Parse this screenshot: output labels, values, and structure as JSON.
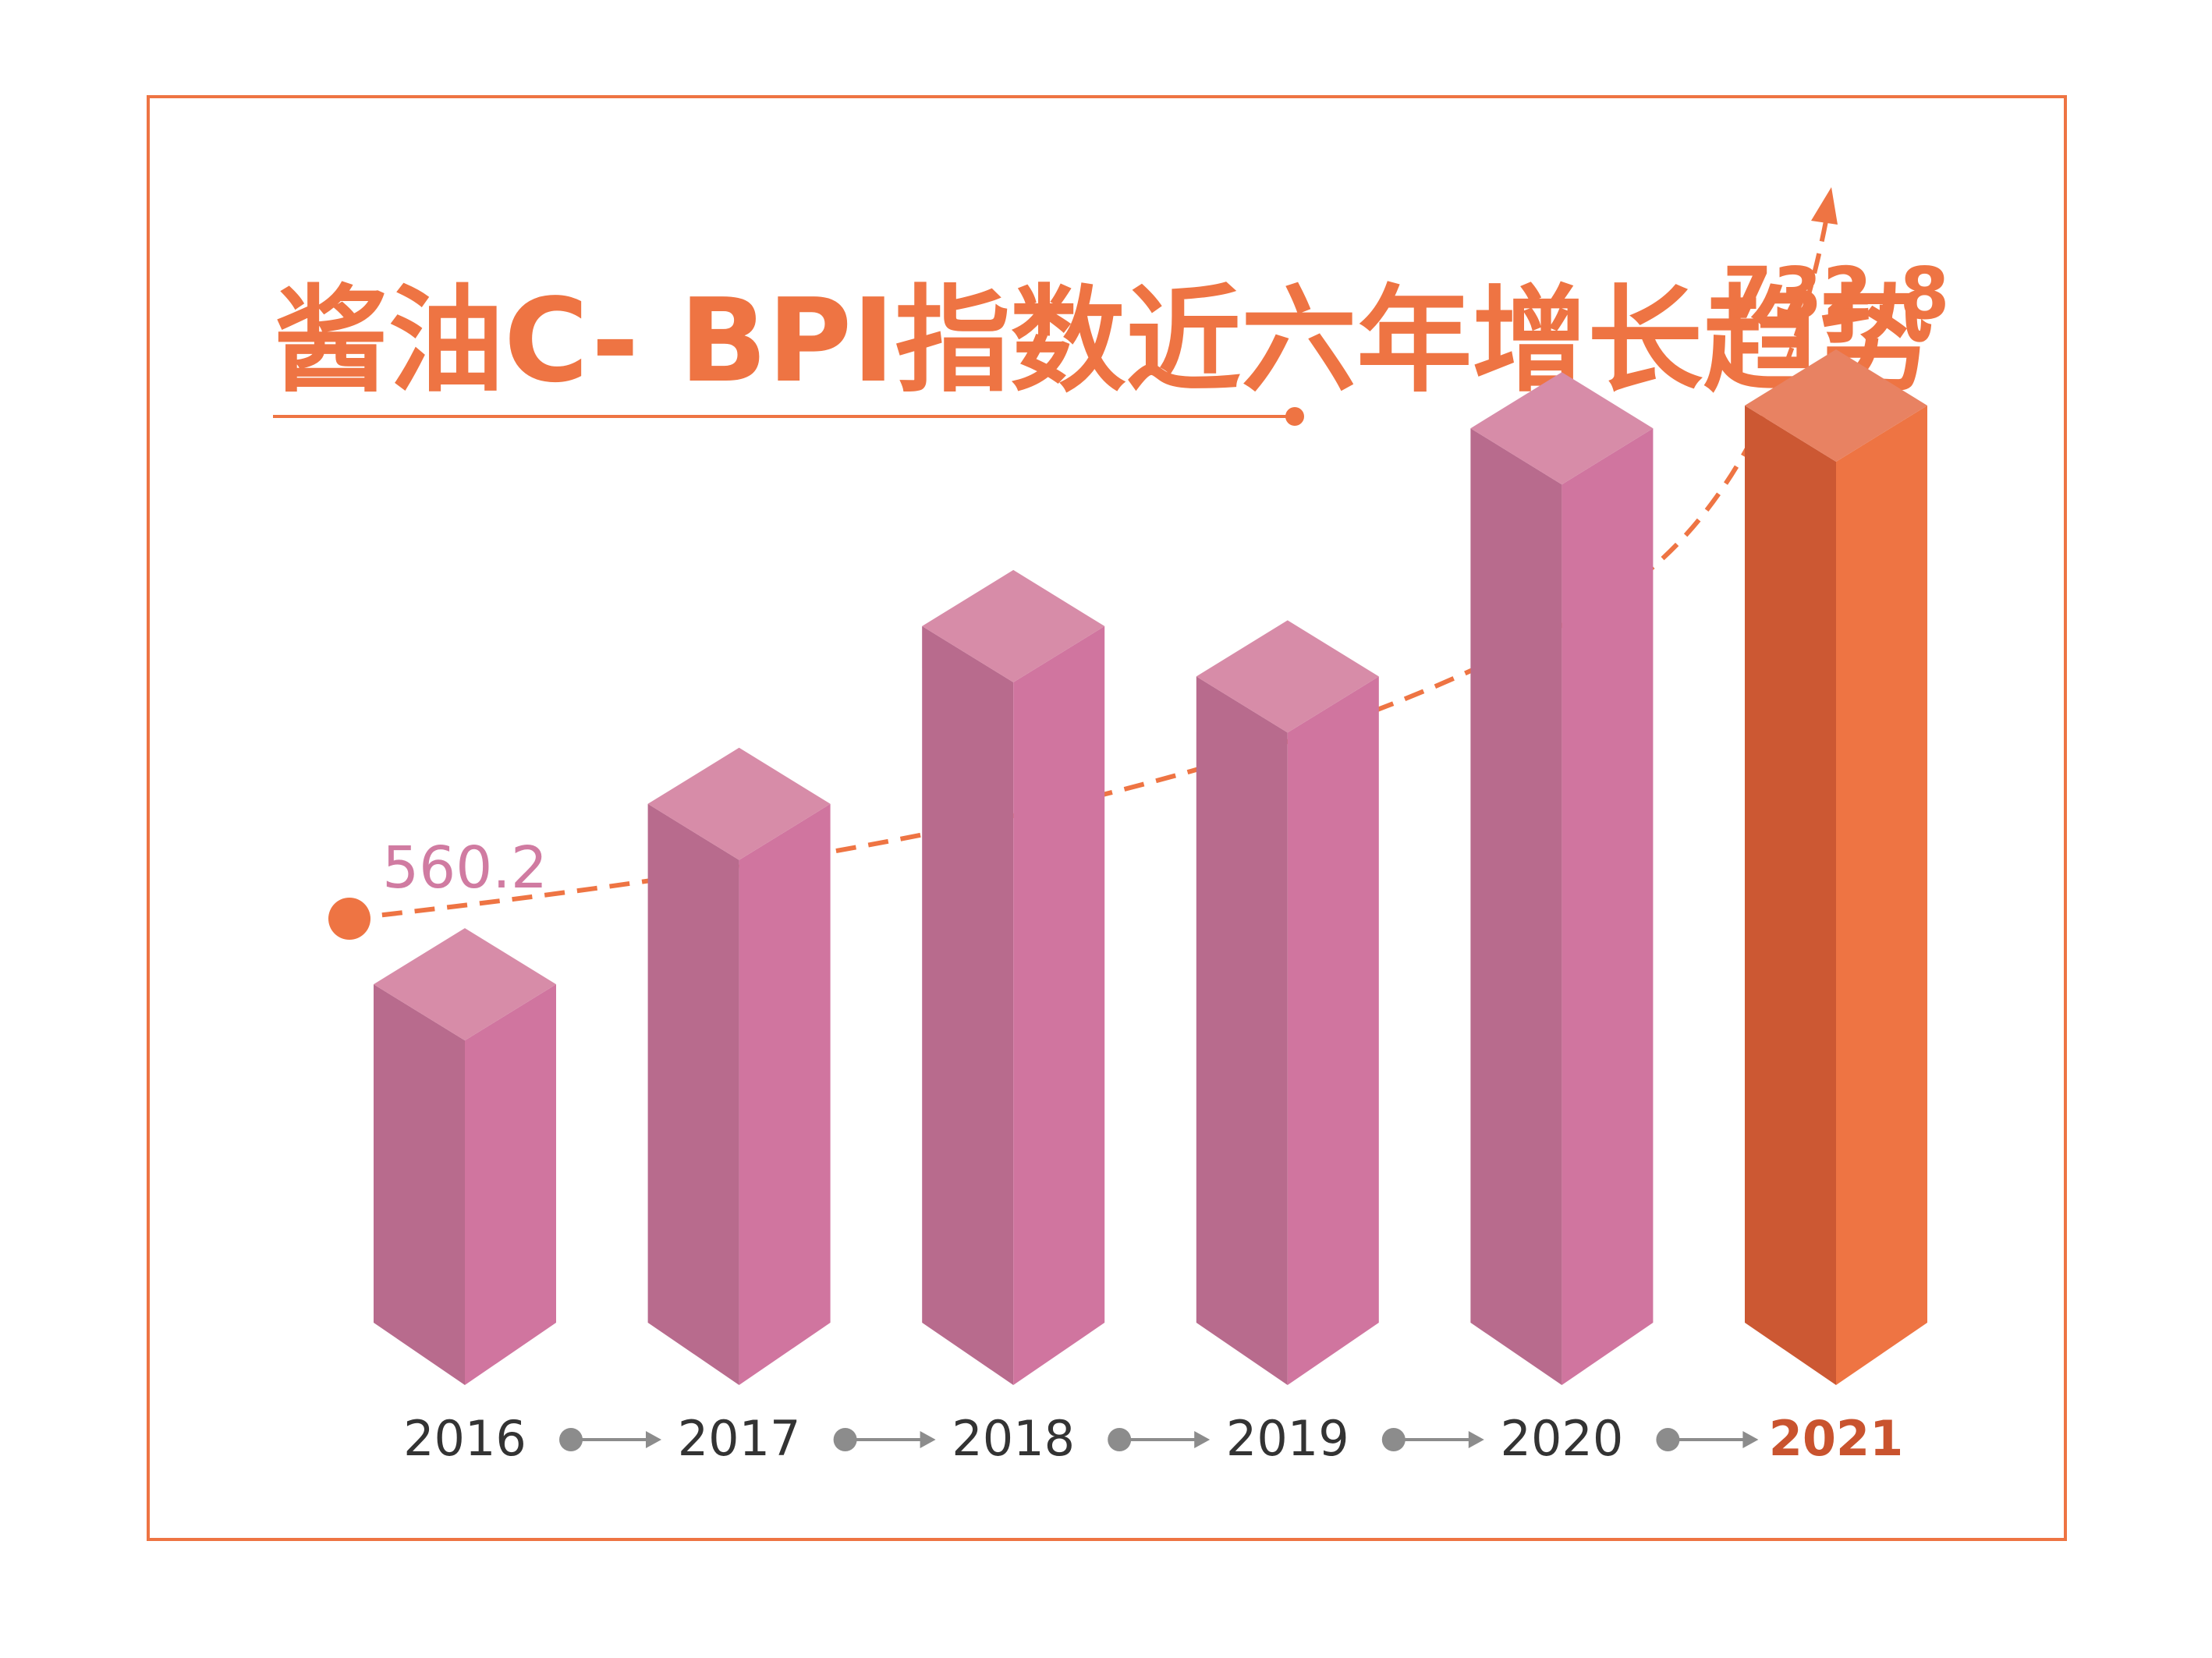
{
  "title": "酱油C- BPI指数近六年增长趋势",
  "colors": {
    "frame": "#ee7443",
    "title": "#ee7443",
    "trend": "#ee7443",
    "pink_top": "#d78ca8",
    "pink_left": "#b86b8d",
    "pink_right": "#d0759f",
    "orange_top": "#e88262",
    "orange_left": "#cc5833",
    "orange_right": "#ee7443",
    "pink_label": "#d07ba1",
    "orange_label": "#ee7443",
    "year_text": "#333333",
    "year_highlight": "#c9532e",
    "connector": "#8c8c8c"
  },
  "chart_data": {
    "type": "bar",
    "title": "酱油C- BPI指数近六年增长趋势",
    "categories": [
      "2016",
      "2017",
      "2018",
      "2019",
      "2020",
      "2021"
    ],
    "values": [
      560.2,
      614,
      667,
      652,
      726,
      732.8
    ],
    "value_labels": [
      "560.2",
      "",
      "",
      "",
      "",
      "732.8"
    ],
    "highlight_index": 5,
    "ylim": [
      470,
      735
    ],
    "grid": false,
    "legend": "none"
  }
}
